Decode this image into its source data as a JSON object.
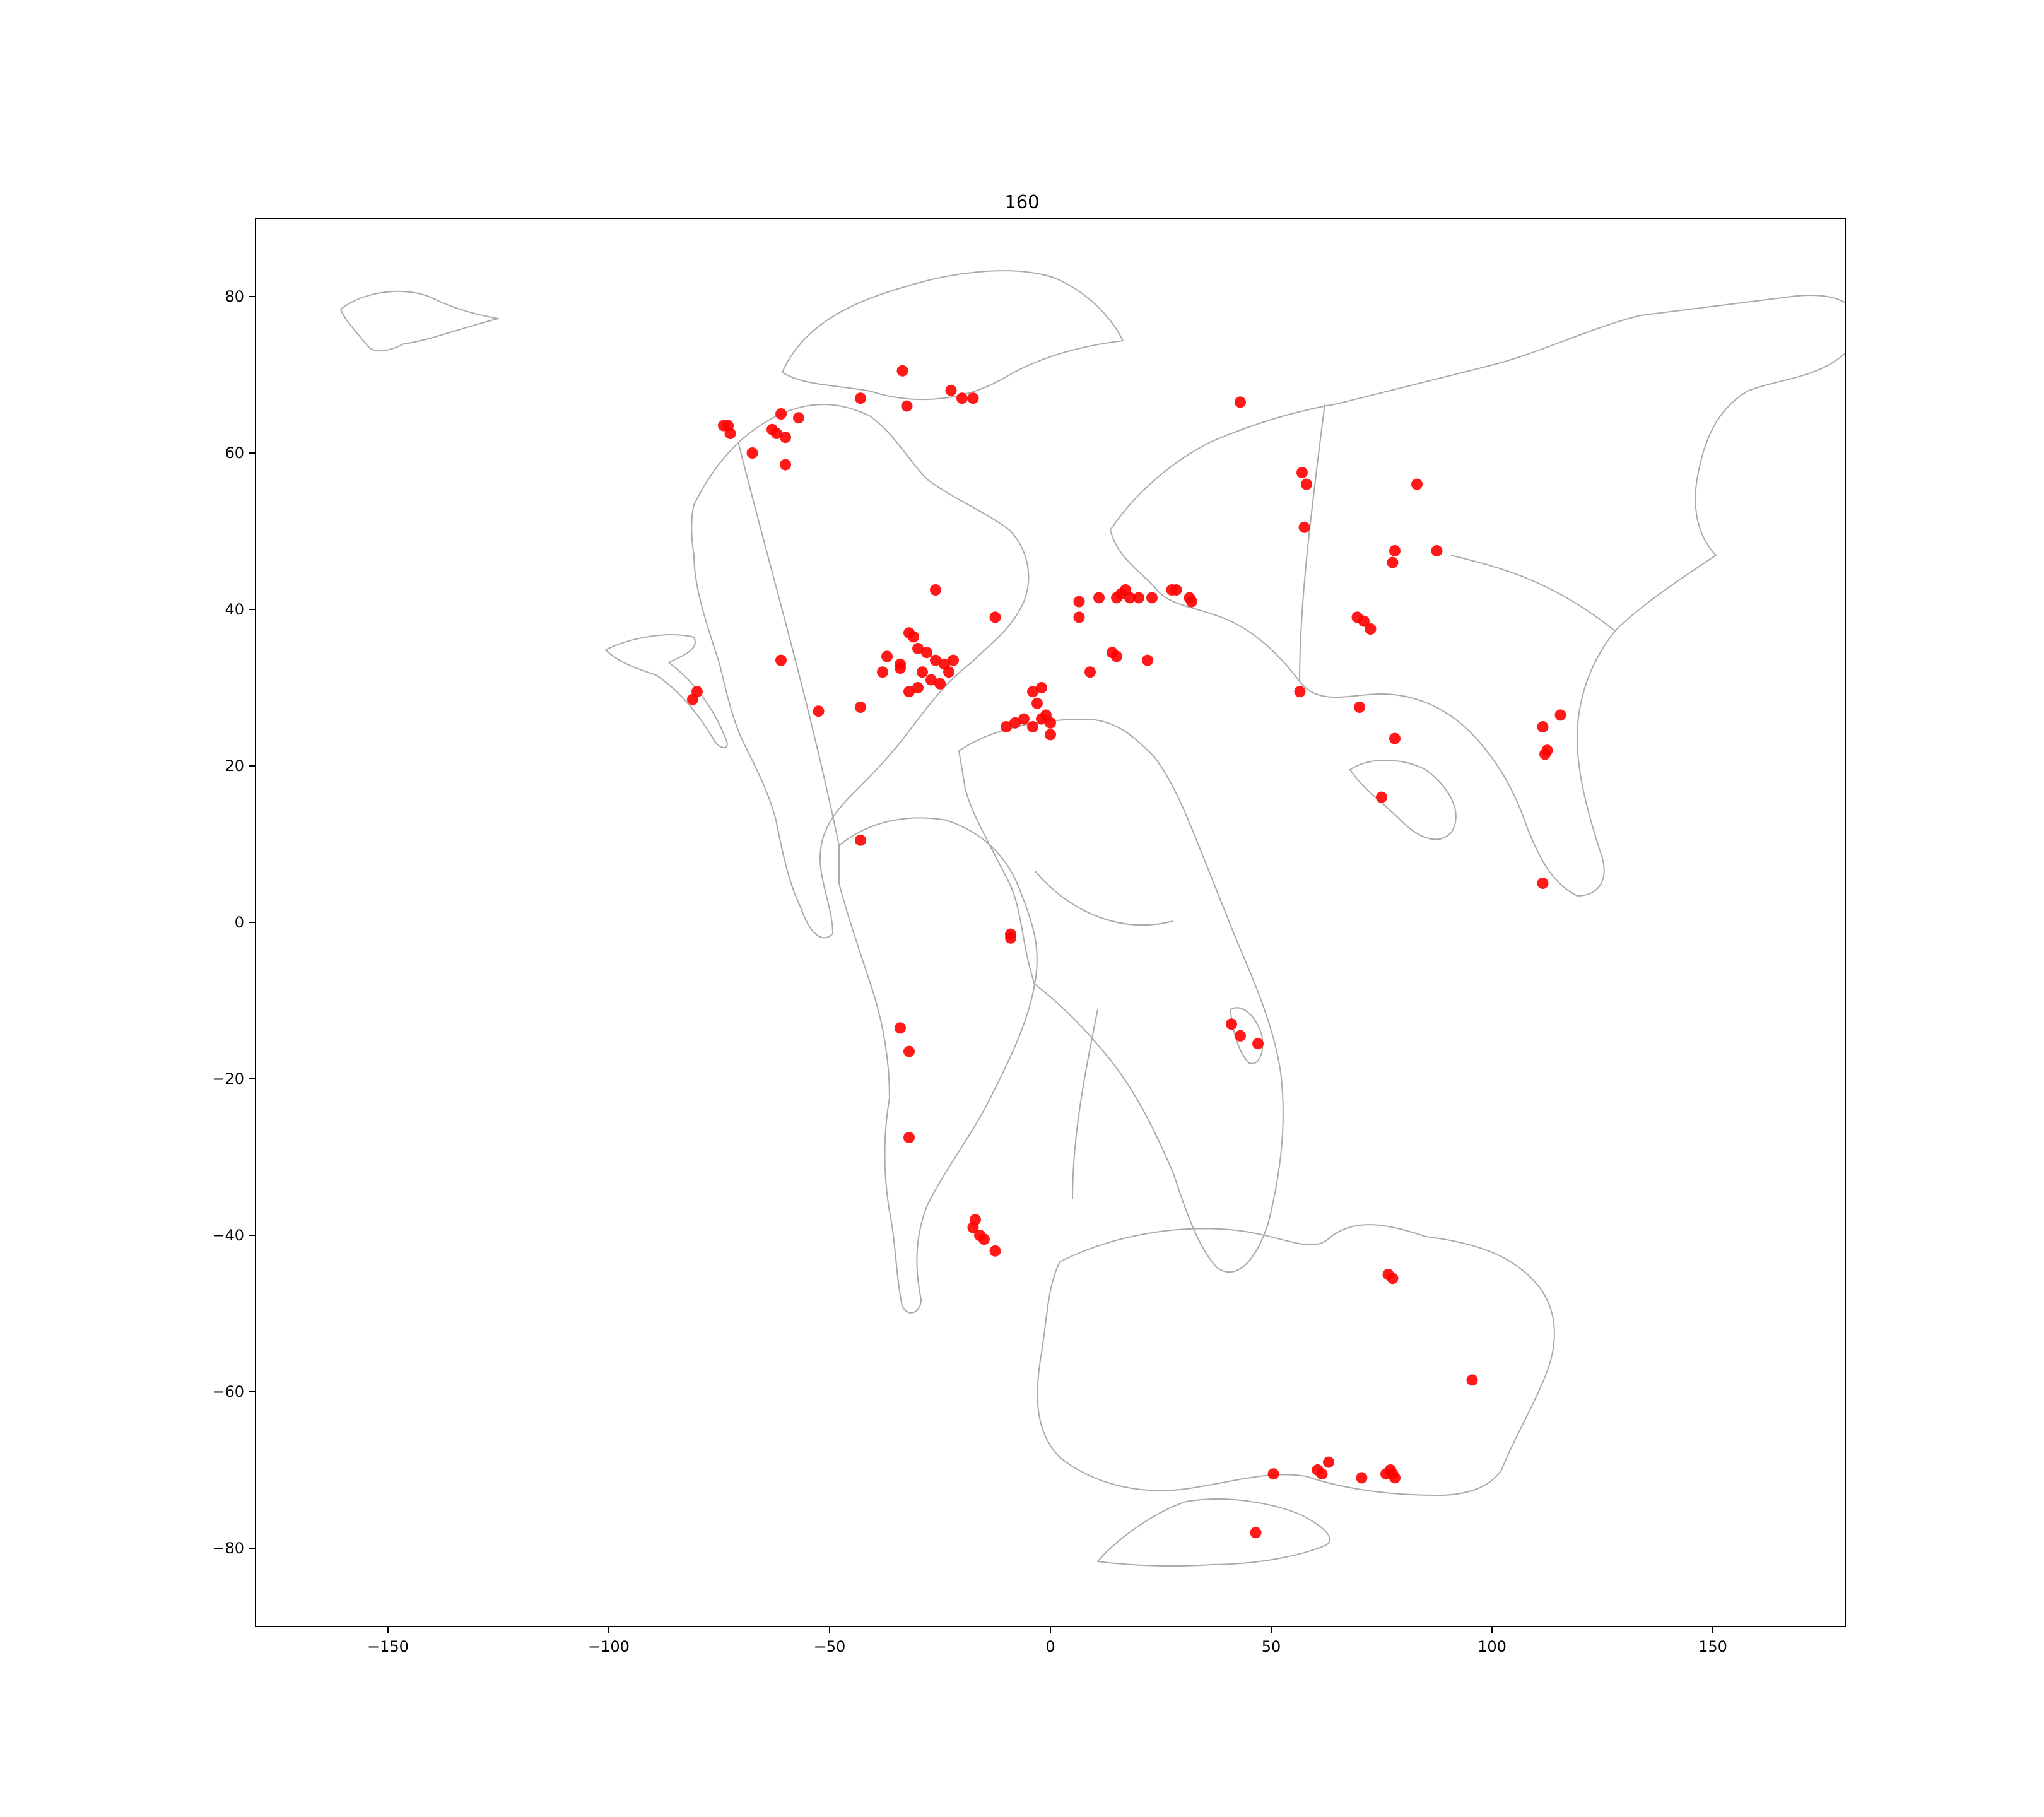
{
  "chart_data": {
    "type": "scatter",
    "title": "160",
    "xlabel": "",
    "ylabel": "",
    "xlim": [
      -180,
      180
    ],
    "ylim": [
      -90,
      90
    ],
    "xticks": [
      -150,
      -100,
      -50,
      0,
      50,
      100,
      150
    ],
    "yticks": [
      80,
      60,
      40,
      20,
      0,
      -20,
      -40,
      -60,
      -80
    ],
    "xtick_labels": [
      "−150",
      "−100",
      "−50",
      "0",
      "50",
      "100",
      "150"
    ],
    "ytick_labels": [
      "80",
      "60",
      "40",
      "20",
      "0",
      "−20",
      "−40",
      "−60",
      "−80"
    ],
    "grid": false,
    "marker_color": "#ff0000",
    "coastline_color": "#aaaaaa",
    "points": [
      [
        -80,
        29.5
      ],
      [
        -81,
        28.5
      ],
      [
        -74,
        63.5
      ],
      [
        -73,
        63.5
      ],
      [
        -72.5,
        62.5
      ],
      [
        -63,
        63
      ],
      [
        -62,
        62.5
      ],
      [
        -60,
        62
      ],
      [
        -61,
        65
      ],
      [
        -57,
        64.5
      ],
      [
        -67.5,
        60
      ],
      [
        -60,
        58.5
      ],
      [
        -43,
        67
      ],
      [
        -33.5,
        70.5
      ],
      [
        -32.5,
        66
      ],
      [
        -22.5,
        68
      ],
      [
        -20,
        67
      ],
      [
        -17.5,
        67
      ],
      [
        -26,
        42.5
      ],
      [
        -12.5,
        39
      ],
      [
        -61,
        33.5
      ],
      [
        -52.5,
        27
      ],
      [
        -43,
        27.5
      ],
      [
        -43,
        10.5
      ],
      [
        -37,
        34
      ],
      [
        -38,
        32
      ],
      [
        -34,
        32.5
      ],
      [
        -32,
        37
      ],
      [
        -31,
        36.5
      ],
      [
        -30,
        35
      ],
      [
        -28,
        34.5
      ],
      [
        -26,
        33.5
      ],
      [
        -24,
        33
      ],
      [
        -23,
        32
      ],
      [
        -27,
        31
      ],
      [
        -30,
        30
      ],
      [
        -32,
        29.5
      ],
      [
        -34,
        33
      ],
      [
        -29,
        32
      ],
      [
        -25,
        30.5
      ],
      [
        -22,
        33.5
      ],
      [
        -4,
        29.5
      ],
      [
        -2,
        30
      ],
      [
        -3,
        28
      ],
      [
        -1,
        26.5
      ],
      [
        0,
        25.5
      ],
      [
        -2,
        26
      ],
      [
        -4,
        25
      ],
      [
        -6,
        26
      ],
      [
        -8,
        25.5
      ],
      [
        -10,
        25
      ],
      [
        0,
        24
      ],
      [
        6.5,
        41
      ],
      [
        6.5,
        39
      ],
      [
        9,
        32
      ],
      [
        11,
        41.5
      ],
      [
        14,
        34.5
      ],
      [
        15,
        34
      ],
      [
        15,
        41.5
      ],
      [
        16,
        42
      ],
      [
        17,
        42.5
      ],
      [
        18,
        41.5
      ],
      [
        20,
        41.5
      ],
      [
        22,
        33.5
      ],
      [
        23,
        41.5
      ],
      [
        27.5,
        42.5
      ],
      [
        28.5,
        42.5
      ],
      [
        31.5,
        41.5
      ],
      [
        32,
        41
      ],
      [
        43,
        66.5
      ],
      [
        56.5,
        29.5
      ],
      [
        57,
        57.5
      ],
      [
        58,
        56
      ],
      [
        57.5,
        50.5
      ],
      [
        69.5,
        39
      ],
      [
        71,
        38.5
      ],
      [
        72.5,
        37.5
      ],
      [
        70,
        27.5
      ],
      [
        78,
        23.5
      ],
      [
        75,
        16
      ],
      [
        78,
        47.5
      ],
      [
        77.5,
        46
      ],
      [
        83,
        56
      ],
      [
        87.5,
        47.5
      ],
      [
        111.5,
        25
      ],
      [
        112.5,
        22
      ],
      [
        112,
        21.5
      ],
      [
        115.5,
        26.5
      ],
      [
        111.5,
        5
      ],
      [
        -9,
        -2
      ],
      [
        -9,
        -1.5
      ],
      [
        -34,
        -13.5
      ],
      [
        -32,
        -16.5
      ],
      [
        -32,
        -27.5
      ],
      [
        -17,
        -38
      ],
      [
        -16,
        -40
      ],
      [
        -15,
        -40.5
      ],
      [
        -12.5,
        -42
      ],
      [
        -17.5,
        -39
      ],
      [
        41,
        -13
      ],
      [
        43,
        -14.5
      ],
      [
        47,
        -15.5
      ],
      [
        76.5,
        -45
      ],
      [
        77.5,
        -45.5
      ],
      [
        95.5,
        -58.5
      ],
      [
        50.5,
        -70.5
      ],
      [
        60.5,
        -70
      ],
      [
        61.5,
        -70.5
      ],
      [
        63,
        -69
      ],
      [
        70.5,
        -71
      ],
      [
        76,
        -70.5
      ],
      [
        77,
        -70
      ],
      [
        78,
        -71
      ],
      [
        77.5,
        -70.5
      ],
      [
        46.5,
        -78
      ]
    ]
  }
}
